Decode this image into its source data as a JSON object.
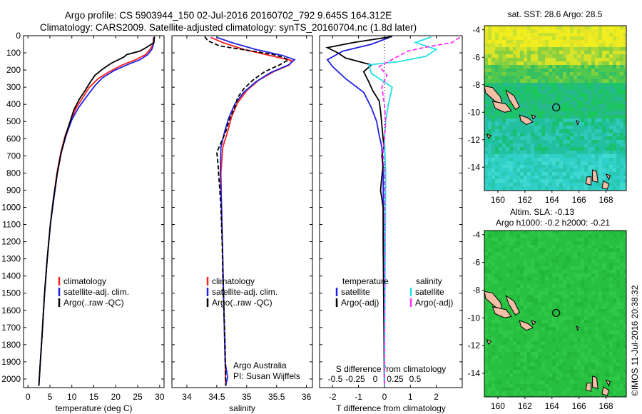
{
  "header": {
    "line1": "Argo profile: CS 5903944_150 02-Jul-2016 20160702_792 9.645S 164.312E",
    "line2": "Climatology: CARS2009. Satellite-adjusted climatology: synTS_20160704.nc (1.8d later)"
  },
  "colors": {
    "climatology": "#ff2020",
    "satellite": "#2020e0",
    "argo": "#000000",
    "sat_diff_S": "#22e0e8",
    "argo_diff_S": "#ff30ff"
  },
  "chart_data": [
    {
      "type": "line",
      "panel": "temperature",
      "xlabel": "temperature (deg C)",
      "ylabel": "",
      "xlim": [
        -1,
        31
      ],
      "ylim": [
        2050,
        0
      ],
      "xticks": [
        "0",
        "5",
        "10",
        "15",
        "20",
        "25",
        "30"
      ],
      "yticks": [
        "0",
        "100",
        "200",
        "300",
        "400",
        "500",
        "600",
        "700",
        "800",
        "900",
        "1000",
        "1100",
        "1200",
        "1300",
        "1400",
        "1500",
        "1600",
        "1700",
        "1800",
        "1900",
        "2000"
      ],
      "legend": [
        "climatology",
        "satellite-adj. clim.",
        "Argo(..raw -QC)"
      ],
      "series": [
        {
          "name": "climatology",
          "style": "red",
          "points": [
            [
              28.6,
              10
            ],
            [
              28.5,
              50
            ],
            [
              27.8,
              80
            ],
            [
              26.8,
              110
            ],
            [
              24.5,
              140
            ],
            [
              21.5,
              170
            ],
            [
              18.5,
              210
            ],
            [
              16,
              250
            ],
            [
              14,
              300
            ],
            [
              12.5,
              360
            ],
            [
              11,
              420
            ],
            [
              9.8,
              490
            ],
            [
              8.5,
              580
            ],
            [
              7.5,
              680
            ],
            [
              6.6,
              800
            ],
            [
              5.8,
              950
            ],
            [
              5.1,
              1100
            ],
            [
              4.4,
              1300
            ],
            [
              3.8,
              1500
            ],
            [
              3.2,
              1750
            ],
            [
              2.7,
              1950
            ],
            [
              2.5,
              2040
            ]
          ]
        },
        {
          "name": "satellite-adj. clim.",
          "style": "blue",
          "points": [
            [
              28.7,
              10
            ],
            [
              28.6,
              50
            ],
            [
              28.2,
              80
            ],
            [
              27.3,
              110
            ],
            [
              25.5,
              140
            ],
            [
              22.5,
              170
            ],
            [
              19.5,
              205
            ],
            [
              17,
              245
            ],
            [
              15.3,
              290
            ],
            [
              13.5,
              350
            ],
            [
              11.5,
              420
            ],
            [
              10,
              490
            ],
            [
              8.7,
              580
            ],
            [
              7.6,
              680
            ],
            [
              6.7,
              800
            ],
            [
              5.9,
              950
            ],
            [
              5.1,
              1100
            ],
            [
              4.4,
              1300
            ],
            [
              3.8,
              1500
            ],
            [
              3.2,
              1750
            ],
            [
              2.7,
              1950
            ],
            [
              2.5,
              2040
            ]
          ]
        },
        {
          "name": "Argo(..raw -QC)",
          "style": "black",
          "points": [
            [
              28.8,
              5
            ],
            [
              28.7,
              40
            ],
            [
              27.2,
              65
            ],
            [
              25.5,
              90
            ],
            [
              22.5,
              110
            ],
            [
              21.8,
              125
            ],
            [
              19,
              160
            ],
            [
              17,
              195
            ],
            [
              15.3,
              230
            ],
            [
              14.2,
              270
            ],
            [
              13,
              320
            ],
            [
              11.7,
              370
            ],
            [
              10.5,
              430
            ],
            [
              9.6,
              500
            ],
            [
              8.6,
              580
            ],
            [
              7.6,
              680
            ],
            [
              6.7,
              800
            ],
            [
              5.8,
              950
            ],
            [
              5.1,
              1100
            ],
            [
              4.4,
              1300
            ],
            [
              3.8,
              1500
            ],
            [
              3.2,
              1750
            ],
            [
              2.7,
              1950
            ],
            [
              2.5,
              2040
            ]
          ]
        }
      ]
    },
    {
      "type": "line",
      "panel": "salinity",
      "xlabel": "salinity",
      "xlim": [
        33.75,
        36.1
      ],
      "ylim": [
        2050,
        0
      ],
      "xticks": [
        "34",
        "34.5",
        "35",
        "35.5",
        "36"
      ],
      "legend": [
        "climatology",
        "satellite-adj. clim.",
        "Argo(..raw -QC)"
      ],
      "annotation": [
        "Argo Australia",
        "PI: Susan Wijffels"
      ],
      "series": [
        {
          "name": "climatology",
          "style": "red",
          "points": [
            [
              34.4,
              10
            ],
            [
              34.6,
              40
            ],
            [
              34.95,
              80
            ],
            [
              35.45,
              120
            ],
            [
              35.75,
              145
            ],
            [
              35.72,
              170
            ],
            [
              35.45,
              210
            ],
            [
              35.2,
              260
            ],
            [
              35.0,
              320
            ],
            [
              34.85,
              390
            ],
            [
              34.75,
              470
            ],
            [
              34.68,
              560
            ],
            [
              34.6,
              650
            ],
            [
              34.57,
              800
            ],
            [
              34.58,
              1000
            ],
            [
              34.6,
              1300
            ],
            [
              34.62,
              1600
            ],
            [
              34.64,
              1900
            ],
            [
              34.65,
              2040
            ]
          ]
        },
        {
          "name": "satellite-adj. clim.",
          "style": "blue",
          "points": [
            [
              34.5,
              10
            ],
            [
              34.75,
              40
            ],
            [
              35.15,
              80
            ],
            [
              35.6,
              115
            ],
            [
              35.8,
              140
            ],
            [
              35.7,
              170
            ],
            [
              35.4,
              215
            ],
            [
              35.15,
              270
            ],
            [
              34.95,
              330
            ],
            [
              34.8,
              400
            ],
            [
              34.7,
              480
            ],
            [
              34.63,
              560
            ],
            [
              34.57,
              650
            ],
            [
              34.56,
              800
            ],
            [
              34.58,
              1000
            ],
            [
              34.6,
              1300
            ],
            [
              34.62,
              1600
            ],
            [
              34.64,
              1900
            ],
            [
              34.68,
              1990
            ],
            [
              34.65,
              2040
            ]
          ]
        },
        {
          "name": "Argo(..raw -QC)",
          "style": "black dashed",
          "points": [
            [
              34.3,
              5
            ],
            [
              34.35,
              30
            ],
            [
              34.55,
              60
            ],
            [
              35.1,
              90
            ],
            [
              35.45,
              110
            ],
            [
              35.6,
              125
            ],
            [
              35.7,
              140
            ],
            [
              35.55,
              170
            ],
            [
              35.3,
              210
            ],
            [
              35.1,
              260
            ],
            [
              34.95,
              310
            ],
            [
              34.85,
              360
            ],
            [
              34.8,
              420
            ],
            [
              34.72,
              480
            ],
            [
              34.65,
              560
            ],
            [
              34.55,
              640
            ],
            [
              34.5,
              680
            ],
            [
              34.52,
              740
            ],
            [
              34.53,
              800
            ],
            [
              34.55,
              900
            ],
            [
              34.57,
              1000
            ],
            [
              34.59,
              1200
            ],
            [
              34.6,
              1400
            ],
            [
              34.62,
              1600
            ],
            [
              34.64,
              1800
            ],
            [
              34.65,
              2040
            ]
          ]
        }
      ]
    },
    {
      "type": "line",
      "panel": "differences",
      "xlabel": "T difference from climatology",
      "xlabel_top": "S difference from climatology",
      "xlim": [
        -2.5,
        3
      ],
      "ylim": [
        2050,
        0
      ],
      "xticks": [
        "-2",
        "-1",
        "0",
        "1",
        "2"
      ],
      "xticks_top": [
        "-0.5",
        "-0.25",
        "0",
        "0.25",
        "0.5"
      ],
      "legend_headers": [
        "temperature",
        "salinity"
      ],
      "legend": [
        "satellite",
        "Argo(-adj)",
        "satellite",
        "Argo(-adj)"
      ],
      "series": [
        {
          "name": "temperature satellite",
          "style": "blue",
          "points": [
            [
              0.2,
              10
            ],
            [
              -0.5,
              50
            ],
            [
              -1.6,
              90
            ],
            [
              -2.2,
              140
            ],
            [
              -2.0,
              180
            ],
            [
              -1.5,
              250
            ],
            [
              -0.8,
              330
            ],
            [
              -0.5,
              420
            ],
            [
              -0.3,
              500
            ],
            [
              -0.2,
              580
            ],
            [
              -0.1,
              650
            ],
            [
              -0.05,
              800
            ],
            [
              0,
              2040
            ]
          ]
        },
        {
          "name": "temperature Argo(-adj)",
          "style": "black",
          "points": [
            [
              0.3,
              5
            ],
            [
              -1.2,
              40
            ],
            [
              -2.2,
              70
            ],
            [
              -1.8,
              100
            ],
            [
              -1.5,
              130
            ],
            [
              -0.5,
              170
            ],
            [
              -0.8,
              210
            ],
            [
              -0.6,
              270
            ],
            [
              -0.45,
              320
            ],
            [
              -0.2,
              380
            ],
            [
              -0.15,
              440
            ],
            [
              -0.1,
              520
            ],
            [
              -0.05,
              600
            ],
            [
              -0.02,
              650
            ],
            [
              -0.1,
              700
            ],
            [
              -0.05,
              760
            ],
            [
              -0.1,
              820
            ],
            [
              -0.15,
              900
            ],
            [
              -0.05,
              1000
            ],
            [
              -0.05,
              1200
            ],
            [
              -0.03,
              1500
            ],
            [
              0,
              2040
            ]
          ]
        },
        {
          "name": "salinity satellite",
          "style": "cyan",
          "points": [
            [
              1.8,
              8
            ],
            [
              1.2,
              40
            ],
            [
              2.0,
              80
            ],
            [
              1.6,
              120
            ],
            [
              0.6,
              150
            ],
            [
              -0.6,
              170
            ],
            [
              -0.5,
              220
            ],
            [
              0.3,
              300
            ],
            [
              0.15,
              400
            ],
            [
              0.05,
              500
            ],
            [
              0,
              600
            ],
            [
              0.05,
              800
            ],
            [
              0,
              2040
            ]
          ]
        },
        {
          "name": "salinity Argo(-adj)",
          "style": "magenta dashed",
          "points": [
            [
              2.9,
              10
            ],
            [
              2.6,
              40
            ],
            [
              1.5,
              70
            ],
            [
              0.9,
              90
            ],
            [
              0.4,
              130
            ],
            [
              -0.2,
              180
            ],
            [
              0.1,
              230
            ],
            [
              -0.1,
              300
            ],
            [
              0,
              400
            ],
            [
              0.05,
              500
            ],
            [
              0,
              600
            ],
            [
              -0.05,
              680
            ],
            [
              0,
              800
            ],
            [
              0,
              2040
            ]
          ]
        }
      ]
    },
    {
      "type": "heatmap",
      "panel": "SST map",
      "title": "sat. SST: 28.6 Argo: 28.5",
      "xlim": [
        159,
        169.5
      ],
      "ylim": [
        -15.7,
        -3.7
      ],
      "xticks": [
        "160",
        "162",
        "164",
        "166",
        "168"
      ],
      "yticks": [
        "-4",
        "-6",
        "-8",
        "-10",
        "-12",
        "-14"
      ],
      "marker": {
        "lon": 164.312,
        "lat": -9.645
      }
    },
    {
      "type": "heatmap",
      "panel": "SLA map",
      "title": "Altim. SLA: -0.13",
      "subtitle": "Argo h1000: -0.2 h2000: -0.21",
      "xlim": [
        159,
        169.5
      ],
      "ylim": [
        -15.7,
        -3.7
      ],
      "xticks": [
        "160",
        "162",
        "164",
        "166",
        "168"
      ],
      "yticks": [
        "-4",
        "-6",
        "-8",
        "-10",
        "-12",
        "-14"
      ],
      "marker": {
        "lon": 164.312,
        "lat": -9.645
      }
    }
  ],
  "credit": "©IMOS 11-Jul-2016 20:38:32"
}
